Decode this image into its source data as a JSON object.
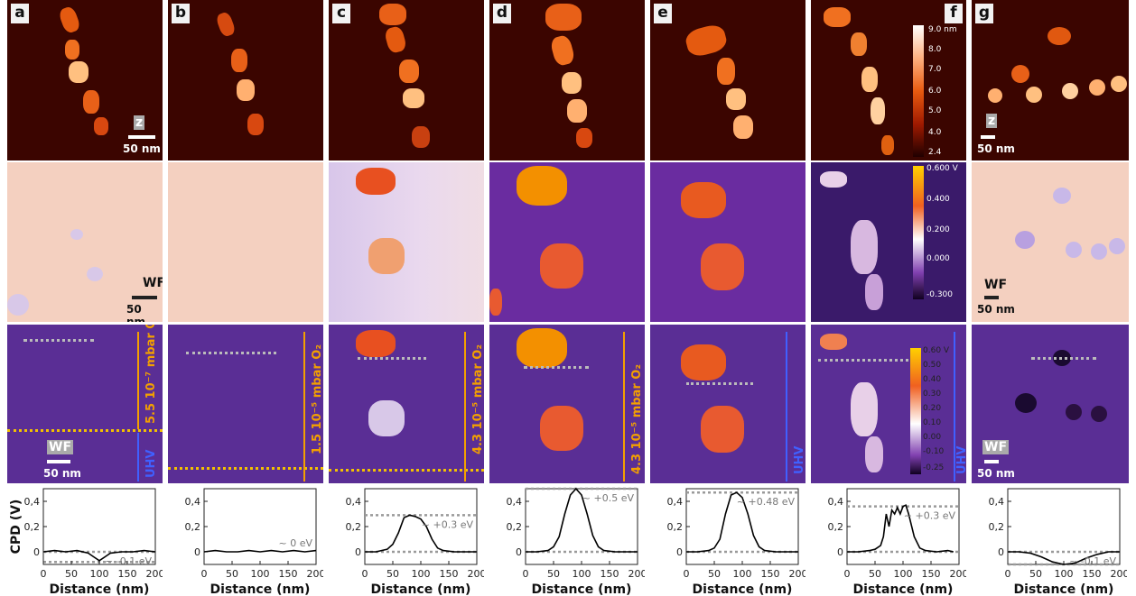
{
  "panel_letters": [
    "a",
    "b",
    "c",
    "d",
    "e",
    "f",
    "g"
  ],
  "scale_labels": {
    "z": "z",
    "wf": "WF",
    "scale": "50 nm"
  },
  "topo_colorbar": {
    "ticks": [
      "9.0 nm",
      "8.0",
      "7.0",
      "6.0",
      "5.0",
      "4.0",
      "2.4"
    ]
  },
  "wf_colorbar": {
    "ticks": [
      "0.600 V",
      "0.400",
      "0.200",
      "0.000",
      "-0.300"
    ]
  },
  "wf2_colorbar": {
    "ticks": [
      "0.60 V",
      "0.50",
      "0.40",
      "0.30",
      "0.20",
      "0.10",
      "0.00",
      "-0.10",
      "-0.25"
    ]
  },
  "pressure_labels": {
    "a": "5.5 10⁻⁷ mbar O₂",
    "b": "1.5 10⁻⁵ mbar O₂",
    "c": "4.3 10⁻⁵ mbar O₂",
    "d": "4.3 10⁻⁵ mbar O₂",
    "uhv": "UHV"
  },
  "colors": {
    "topo_bg": "#3b0500",
    "wf_bg": "#f4d0c0",
    "purple": "#6a2ca0",
    "orange": "#f3a000",
    "blue": "#4060ff",
    "gray": "#9a9a9a"
  },
  "chart_data": [
    {
      "type": "line",
      "panel": "a",
      "xlabel": "Distance (nm)",
      "ylabel": "CPD (V)",
      "xlim": [
        0,
        200
      ],
      "ylim": [
        -0.1,
        0.5
      ],
      "xticks": [
        "0",
        "50",
        "100",
        "150",
        "200"
      ],
      "yticks": [
        "0",
        "0,2",
        "0,4"
      ],
      "annotation": "~ -0.1 eV",
      "x": [
        0,
        20,
        40,
        60,
        80,
        90,
        100,
        110,
        120,
        140,
        160,
        180,
        200
      ],
      "y": [
        0.0,
        0.01,
        0.0,
        0.01,
        -0.01,
        -0.04,
        -0.07,
        -0.04,
        -0.01,
        0.0,
        0.0,
        0.01,
        0.0
      ],
      "ref_levels": [
        0.0,
        -0.08
      ]
    },
    {
      "type": "line",
      "panel": "b",
      "xlabel": "Distance (nm)",
      "ylabel": "",
      "xlim": [
        0,
        200
      ],
      "ylim": [
        -0.1,
        0.5
      ],
      "xticks": [
        "0",
        "50",
        "100",
        "150",
        "200"
      ],
      "yticks": [
        "0",
        "0,2",
        "0,4"
      ],
      "annotation": "~ 0 eV",
      "x": [
        0,
        20,
        40,
        60,
        80,
        100,
        120,
        140,
        160,
        180,
        200
      ],
      "y": [
        0.0,
        0.01,
        0.0,
        0.0,
        0.01,
        0.0,
        0.01,
        0.0,
        0.01,
        0.0,
        0.01
      ],
      "ref_levels": []
    },
    {
      "type": "line",
      "panel": "c",
      "xlabel": "Distance (nm)",
      "ylabel": "",
      "xlim": [
        0,
        200
      ],
      "ylim": [
        -0.1,
        0.5
      ],
      "xticks": [
        "0",
        "50",
        "100",
        "150",
        "200"
      ],
      "yticks": [
        "0",
        "0,2",
        "0,4"
      ],
      "annotation": "~ +0.3 eV",
      "x": [
        0,
        20,
        40,
        50,
        60,
        70,
        80,
        90,
        100,
        110,
        120,
        130,
        140,
        160,
        180,
        200
      ],
      "y": [
        0.0,
        0.0,
        0.02,
        0.06,
        0.15,
        0.27,
        0.29,
        0.28,
        0.26,
        0.2,
        0.1,
        0.03,
        0.01,
        0.0,
        0.0,
        0.0
      ],
      "ref_levels": [
        0.0,
        0.29
      ]
    },
    {
      "type": "line",
      "panel": "d",
      "xlabel": "Distance (nm)",
      "ylabel": "",
      "xlim": [
        0,
        200
      ],
      "ylim": [
        -0.1,
        0.55
      ],
      "xticks": [
        "0",
        "50",
        "100",
        "150",
        "200"
      ],
      "yticks": [
        "0",
        "0,2",
        "0,4"
      ],
      "annotation": "~ +0.5 eV",
      "x": [
        0,
        20,
        40,
        50,
        60,
        70,
        80,
        90,
        100,
        110,
        120,
        130,
        140,
        160,
        180,
        200
      ],
      "y": [
        0.0,
        0.0,
        0.01,
        0.04,
        0.12,
        0.3,
        0.45,
        0.5,
        0.45,
        0.3,
        0.13,
        0.04,
        0.01,
        0.0,
        0.0,
        0.0
      ],
      "ref_levels": [
        0.0,
        0.5
      ]
    },
    {
      "type": "line",
      "panel": "e",
      "xlabel": "Distance (nm)",
      "ylabel": "",
      "xlim": [
        0,
        200
      ],
      "ylim": [
        -0.1,
        0.55
      ],
      "xticks": [
        "0",
        "50",
        "100",
        "150",
        "200"
      ],
      "yticks": [
        "0",
        "0,2",
        "0,4"
      ],
      "annotation": "~ +0.48 eV",
      "x": [
        0,
        20,
        40,
        50,
        60,
        70,
        80,
        90,
        100,
        110,
        120,
        130,
        140,
        160,
        180,
        200
      ],
      "y": [
        0.0,
        0.0,
        0.01,
        0.03,
        0.1,
        0.3,
        0.45,
        0.47,
        0.43,
        0.3,
        0.13,
        0.04,
        0.01,
        0.0,
        0.0,
        0.0
      ],
      "ref_levels": [
        0.0,
        0.47
      ]
    },
    {
      "type": "line",
      "panel": "f",
      "xlabel": "Distance (nm)",
      "ylabel": "",
      "xlim": [
        0,
        200
      ],
      "ylim": [
        -0.1,
        0.5
      ],
      "xticks": [
        "0",
        "50",
        "100",
        "150",
        "200"
      ],
      "yticks": [
        "0",
        "0,2",
        "0,4"
      ],
      "annotation": "~ +0.3 eV",
      "x": [
        0,
        20,
        40,
        50,
        60,
        65,
        70,
        75,
        80,
        85,
        90,
        95,
        100,
        105,
        110,
        120,
        130,
        140,
        160,
        180,
        190
      ],
      "y": [
        0.0,
        0.0,
        0.01,
        0.02,
        0.05,
        0.12,
        0.3,
        0.2,
        0.33,
        0.3,
        0.35,
        0.3,
        0.36,
        0.37,
        0.3,
        0.12,
        0.03,
        0.01,
        0.0,
        0.01,
        0.0
      ],
      "ref_levels": [
        0.0,
        0.36
      ]
    },
    {
      "type": "line",
      "panel": "g",
      "xlabel": "Distance (nm)",
      "ylabel": "",
      "xlim": [
        0,
        200
      ],
      "ylim": [
        -0.1,
        0.5
      ],
      "xticks": [
        "0",
        "50",
        "100",
        "150",
        "200"
      ],
      "yticks": [
        "0",
        "0,2",
        "0,4"
      ],
      "annotation": "~ -0.1 eV",
      "x": [
        0,
        20,
        40,
        60,
        80,
        100,
        120,
        140,
        160,
        180,
        200
      ],
      "y": [
        0.0,
        0.0,
        -0.01,
        -0.04,
        -0.08,
        -0.1,
        -0.09,
        -0.05,
        -0.02,
        0.0,
        0.0
      ],
      "ref_levels": [
        0.0,
        -0.1
      ]
    }
  ]
}
